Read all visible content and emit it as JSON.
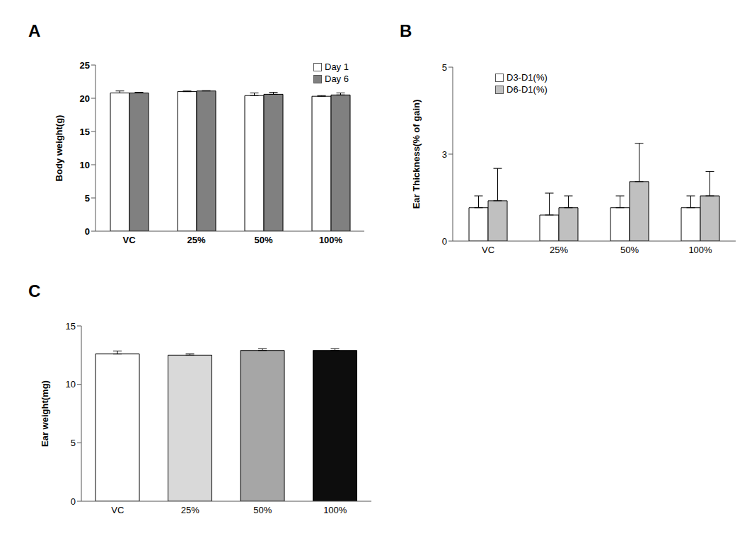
{
  "chart_data": [
    {
      "type": "bar",
      "title": "A",
      "y_label": "Body weight(g)",
      "categories": [
        "VC",
        "25%",
        "50%",
        "100%"
      ],
      "series": [
        {
          "name": "Day 1",
          "color": "#ffffff",
          "values": [
            20.8,
            21.0,
            20.4,
            20.3
          ],
          "errors": [
            0.3,
            0.1,
            0.4,
            0.1
          ]
        },
        {
          "name": "Day 6",
          "color": "#808080",
          "values": [
            20.8,
            21.1,
            20.6,
            20.5
          ],
          "errors": [
            0.1,
            0.05,
            0.3,
            0.3
          ]
        }
      ],
      "ylim": [
        0,
        25
      ],
      "yticks": [
        0,
        5,
        10,
        15,
        20,
        25
      ],
      "legend": "upper right"
    },
    {
      "type": "bar",
      "title": "B",
      "y_label": "Ear Thickness(% of gain)",
      "categories": [
        "VC",
        "25%",
        "50%",
        "100%"
      ],
      "series": [
        {
          "name": "D3-D1(%)",
          "color": "#ffffff",
          "values": [
            0.96,
            0.75,
            0.96,
            0.96
          ],
          "errors": [
            0.34,
            0.63,
            0.34,
            0.34
          ]
        },
        {
          "name": "D6-D1(%)",
          "color": "#c0c0c0",
          "values": [
            1.16,
            0.96,
            1.71,
            1.3
          ],
          "errors": [
            0.93,
            0.34,
            1.1,
            0.7
          ]
        }
      ],
      "ylim": [
        0,
        5
      ],
      "yticks": [
        0,
        {
          "value": 2.5,
          "label": "3"
        },
        5
      ],
      "legend": "upper left"
    },
    {
      "type": "bar",
      "title": "C",
      "y_label": "Ear weight(mg)",
      "categories": [
        "VC",
        "25%",
        "50%",
        "100%"
      ],
      "values": [
        12.6,
        12.5,
        12.9,
        12.9
      ],
      "errors": [
        0.25,
        0.1,
        0.15,
        0.15
      ],
      "colors": [
        "#ffffff",
        "#d9d9d9",
        "#a6a6a6",
        "#0d0d0d"
      ],
      "ylim": [
        0,
        15
      ],
      "yticks": [
        0,
        5,
        10,
        15
      ]
    }
  ]
}
